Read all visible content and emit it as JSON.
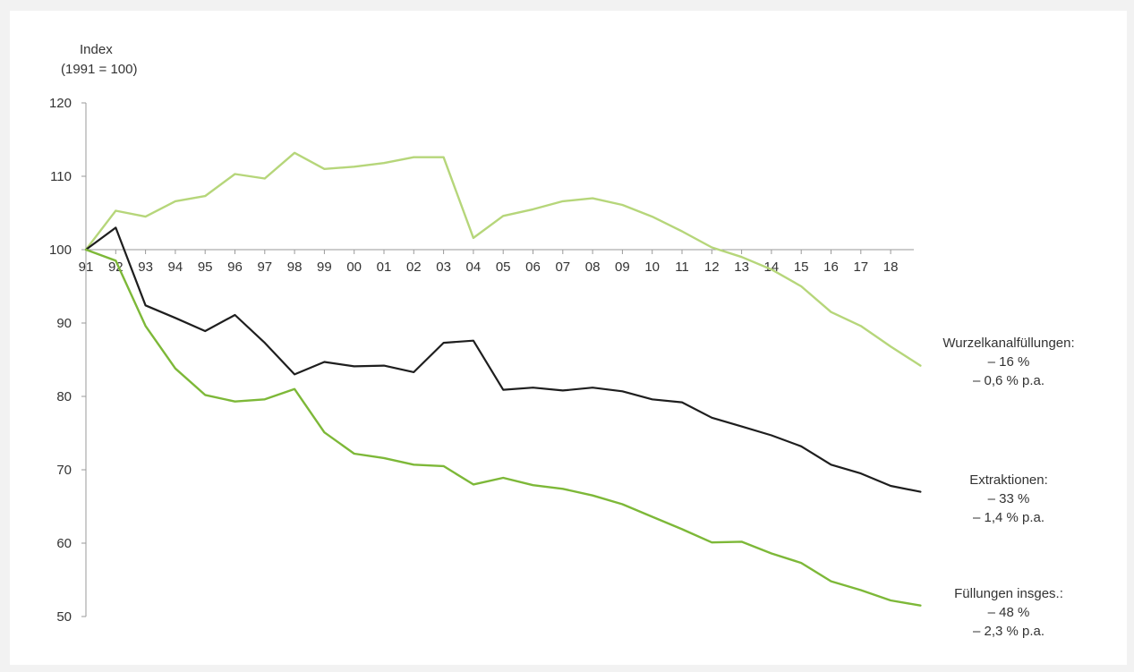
{
  "chart_data": {
    "type": "line",
    "ylabel_lines": [
      "Index",
      "(1991 = 100)"
    ],
    "y_ticks": [
      120,
      110,
      100,
      90,
      80,
      70,
      60,
      50
    ],
    "ylim": [
      50,
      120
    ],
    "x_tick_labels": [
      "91",
      "92",
      "93",
      "94",
      "95",
      "96",
      "97",
      "98",
      "99",
      "00",
      "01",
      "02",
      "03",
      "04",
      "05",
      "06",
      "07",
      "08",
      "09",
      "10",
      "11",
      "12",
      "13",
      "14",
      "15",
      "16",
      "17",
      "18"
    ],
    "x": [
      1991,
      1992,
      1993,
      1994,
      1995,
      1996,
      1997,
      1998,
      1999,
      2000,
      2001,
      2002,
      2003,
      2004,
      2005,
      2006,
      2007,
      2008,
      2009,
      2010,
      2011,
      2012,
      2013,
      2014,
      2015,
      2016,
      2017,
      2018,
      2019
    ],
    "series": [
      {
        "color": "#b6d67a",
        "values": [
          100,
          105.3,
          104.5,
          106.6,
          107.3,
          110.3,
          109.7,
          113.2,
          111,
          111.3,
          111.8,
          112.6,
          112.6,
          101.6,
          104.6,
          105.5,
          106.6,
          107,
          106.1,
          104.5,
          102.5,
          100.3,
          99,
          97.3,
          95,
          91.5,
          89.6,
          86.8,
          84.2
        ],
        "annotation": [
          "Wurzelkanalfüllungen:",
          "– 16 %",
          "– 0,6 % p.a."
        ]
      },
      {
        "color": "#1e1e1e",
        "values": [
          100,
          103,
          92.4,
          90.7,
          88.9,
          91.1,
          87.3,
          83,
          84.7,
          84.1,
          84.2,
          83.3,
          87.3,
          87.6,
          80.9,
          81.2,
          80.8,
          81.2,
          80.7,
          79.6,
          79.2,
          77.1,
          75.9,
          74.7,
          73.2,
          70.7,
          69.5,
          67.8,
          67
        ],
        "annotation": [
          "Extraktionen:",
          "– 33 %",
          "– 1,4 % p.a."
        ]
      },
      {
        "color": "#7db838",
        "values": [
          100,
          98.5,
          89.6,
          83.8,
          80.2,
          79.3,
          79.6,
          81,
          75.1,
          72.2,
          71.6,
          70.7,
          70.5,
          68,
          68.9,
          67.9,
          67.4,
          66.5,
          65.3,
          63.6,
          61.9,
          60.1,
          60.2,
          58.6,
          57.3,
          54.8,
          53.6,
          52.2,
          51.5
        ],
        "annotation": [
          "Füllungen insges.:",
          "– 48 %",
          "– 2,3 % p.a."
        ]
      }
    ]
  }
}
